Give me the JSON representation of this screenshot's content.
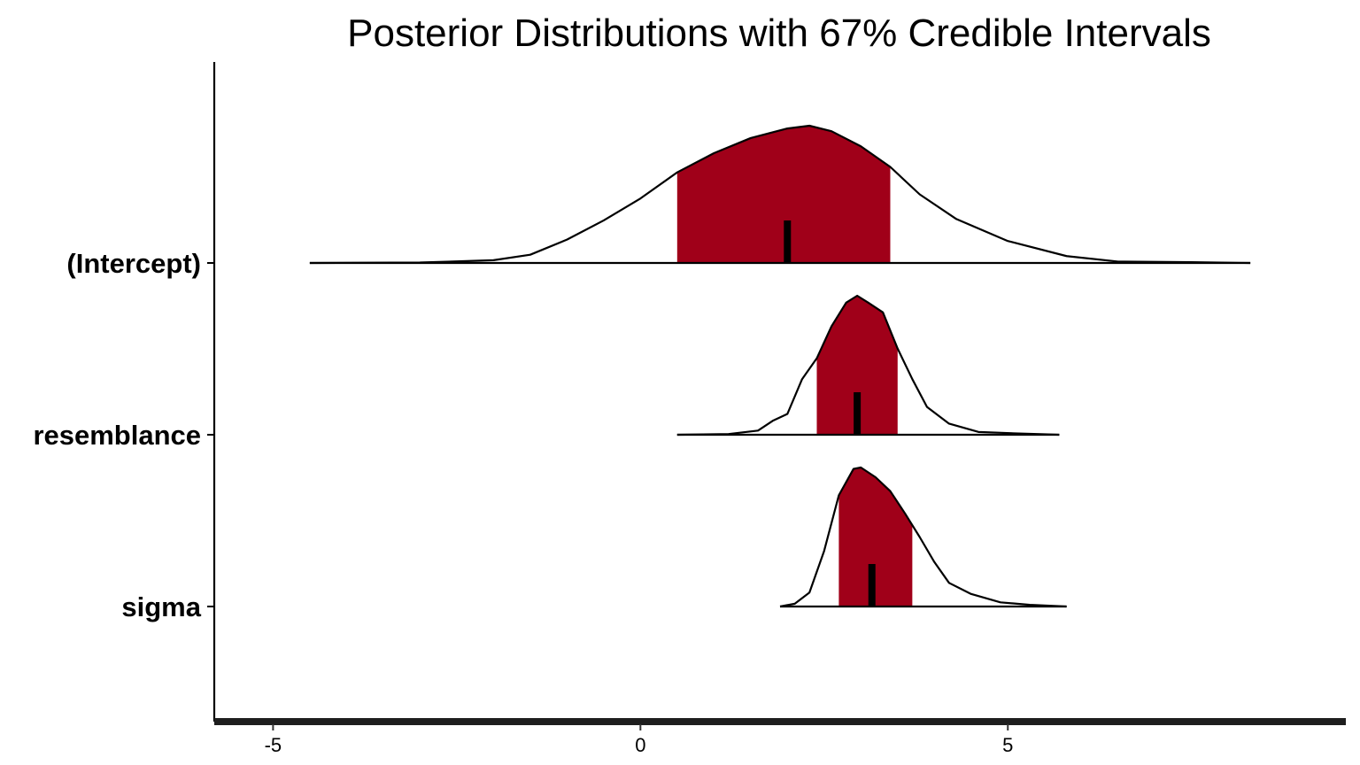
{
  "chart_data": {
    "type": "area",
    "title": "Posterior Distributions with 67% Credible Intervals",
    "xlabel": "",
    "ylabel": "",
    "xlim": [
      -5.8,
      9.6
    ],
    "x_ticks": [
      "-5",
      "0",
      "5"
    ],
    "x_tick_values": [
      -5,
      0,
      5
    ],
    "credible_interval": 0.67,
    "grid": false,
    "legend": "none",
    "fill_color": "#a00019",
    "line_color": "#000000",
    "series": [
      {
        "name": "(Intercept)",
        "range": [
          -4.5,
          8.3
        ],
        "interval": [
          0.5,
          3.4
        ],
        "median": 2.0,
        "density": [
          [
            -4.5,
            0.0
          ],
          [
            -3.0,
            0.003
          ],
          [
            -2.0,
            0.02
          ],
          [
            -1.5,
            0.06
          ],
          [
            -1.0,
            0.17
          ],
          [
            -0.5,
            0.31
          ],
          [
            0.0,
            0.47
          ],
          [
            0.5,
            0.66
          ],
          [
            1.0,
            0.8
          ],
          [
            1.5,
            0.91
          ],
          [
            2.0,
            0.98
          ],
          [
            2.3,
            1.0
          ],
          [
            2.6,
            0.96
          ],
          [
            3.0,
            0.85
          ],
          [
            3.4,
            0.7
          ],
          [
            3.8,
            0.5
          ],
          [
            4.3,
            0.32
          ],
          [
            5.0,
            0.16
          ],
          [
            5.8,
            0.05
          ],
          [
            6.5,
            0.01
          ],
          [
            7.5,
            0.006
          ],
          [
            8.3,
            0.0
          ]
        ]
      },
      {
        "name": "resemblance",
        "range": [
          0.5,
          5.7
        ],
        "interval": [
          2.4,
          3.5
        ],
        "median": 2.95,
        "density": [
          [
            0.5,
            0.0
          ],
          [
            1.2,
            0.005
          ],
          [
            1.6,
            0.03
          ],
          [
            1.8,
            0.1
          ],
          [
            2.0,
            0.15
          ],
          [
            2.2,
            0.4
          ],
          [
            2.4,
            0.55
          ],
          [
            2.6,
            0.78
          ],
          [
            2.8,
            0.95
          ],
          [
            2.95,
            1.0
          ],
          [
            3.1,
            0.95
          ],
          [
            3.3,
            0.88
          ],
          [
            3.5,
            0.62
          ],
          [
            3.7,
            0.4
          ],
          [
            3.9,
            0.2
          ],
          [
            4.2,
            0.08
          ],
          [
            4.6,
            0.02
          ],
          [
            5.2,
            0.008
          ],
          [
            5.7,
            0.0
          ]
        ]
      },
      {
        "name": "sigma",
        "range": [
          1.9,
          5.8
        ],
        "interval": [
          2.7,
          3.7
        ],
        "median": 3.15,
        "density": [
          [
            1.9,
            0.0
          ],
          [
            2.1,
            0.02
          ],
          [
            2.3,
            0.1
          ],
          [
            2.5,
            0.4
          ],
          [
            2.7,
            0.8
          ],
          [
            2.9,
            0.99
          ],
          [
            3.0,
            1.0
          ],
          [
            3.2,
            0.93
          ],
          [
            3.4,
            0.83
          ],
          [
            3.6,
            0.67
          ],
          [
            3.8,
            0.5
          ],
          [
            4.0,
            0.32
          ],
          [
            4.2,
            0.17
          ],
          [
            4.5,
            0.09
          ],
          [
            4.9,
            0.03
          ],
          [
            5.3,
            0.012
          ],
          [
            5.8,
            0.0
          ]
        ]
      }
    ]
  }
}
